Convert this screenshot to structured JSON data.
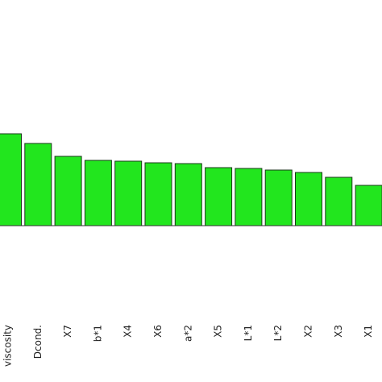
{
  "chart_data": {
    "type": "bar",
    "categories": [
      "viscosity",
      "Dcond.",
      "X7",
      "b*1",
      "X4",
      "X6",
      "a*2",
      "X5",
      "L*1",
      "L*2",
      "X2",
      "X3",
      "X1"
    ],
    "values": [
      1.14,
      1.02,
      0.86,
      0.81,
      0.8,
      0.78,
      0.77,
      0.72,
      0.71,
      0.69,
      0.66,
      0.6,
      0.5
    ],
    "color": "#22e61e",
    "ylim": [
      -1.94,
      2.8
    ]
  }
}
